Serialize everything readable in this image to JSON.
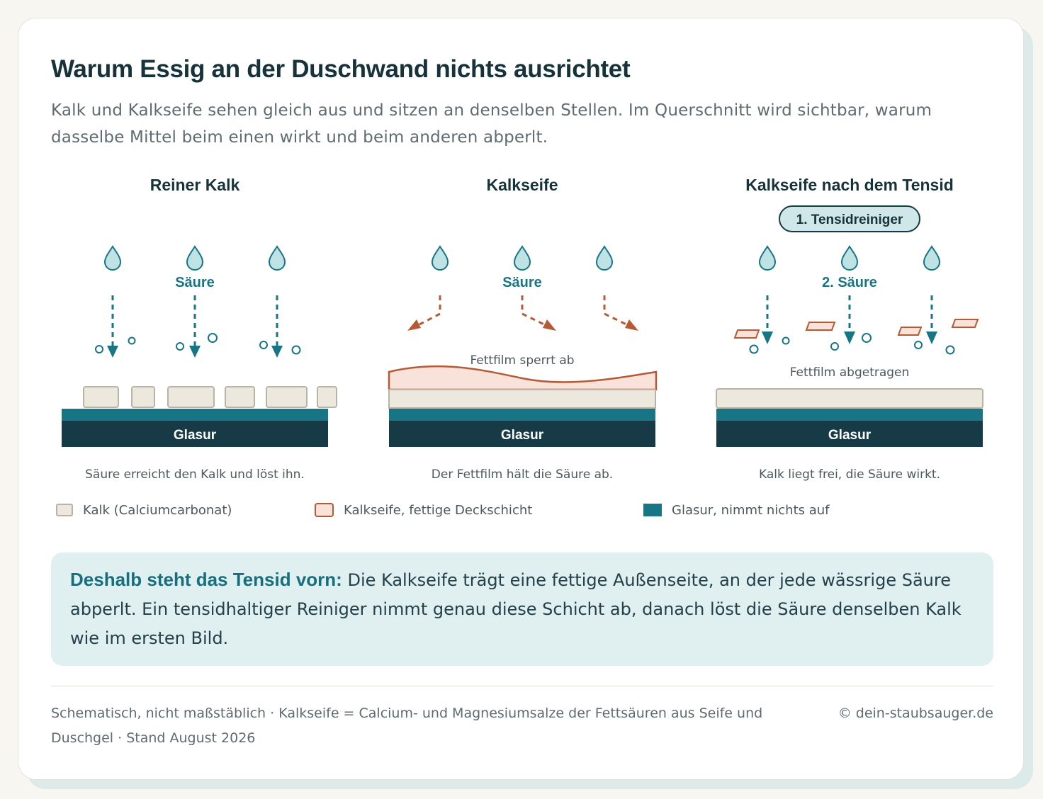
{
  "title": "Warum Essig an der Duschwand nichts ausrichtet",
  "subtitle": "Kalk und Kalkseife sehen gleich aus und sitzen an denselben Stellen. Im Querschnitt wird sichtbar, warum dasselbe Mittel beim einen wirkt und beim anderen abperlt.",
  "panels": [
    {
      "heading": "Reiner Kalk",
      "acid_label": "Säure",
      "glaze_label": "Glasur",
      "caption": "Säure erreicht den Kalk und löst ihn."
    },
    {
      "heading": "Kalkseife",
      "acid_label": "Säure",
      "film_label": "Fettfilm sperrt ab",
      "glaze_label": "Glasur",
      "caption": "Der Fettfilm hält die Säure ab."
    },
    {
      "heading": "Kalkseife nach dem Tensid",
      "step_badge": "1. Tensidreiniger",
      "acid_label": "2. Säure",
      "film_label": "Fettfilm abgetragen",
      "glaze_label": "Glasur",
      "caption": "Kalk liegt frei, die Säure wirkt."
    }
  ],
  "legend": [
    {
      "label": "Kalk (Calciumcarbonat)",
      "fill": "#ece8dd",
      "border": "#b9b3a5"
    },
    {
      "label": "Kalkseife, fettige Deckschicht",
      "fill": "#f8e2da",
      "border": "#b65a36"
    },
    {
      "label": "Glasur, nimmt nichts auf",
      "fill": "#177585",
      "border": "#177585"
    }
  ],
  "callout": {
    "lead": "Deshalb steht das Tensid vorn:",
    "text": " Die Kalkseife trägt eine fettige Außenseite, an der jede wässrige Säure abperlt. Ein tensidhaltiger Reiniger nimmt genau diese Schicht ab, danach löst die Säure denselben Kalk wie im ersten Bild."
  },
  "footnote": "Schematisch, nicht maßstäblich · Kalkseife = Calcium- und Magnesiumsalze der Fettsäuren aus Seife und Duschgel · Stand August 2026",
  "copyright": "© dein-staubsauger.de",
  "colors": {
    "teal": "#177585",
    "glaze_dark": "#173a47",
    "lime": "#ece8dd",
    "lime_border": "#b9b3a5",
    "soap_fill": "#f8e2da",
    "soap_border": "#b65a36",
    "drop_fill": "#bfe2e4"
  }
}
